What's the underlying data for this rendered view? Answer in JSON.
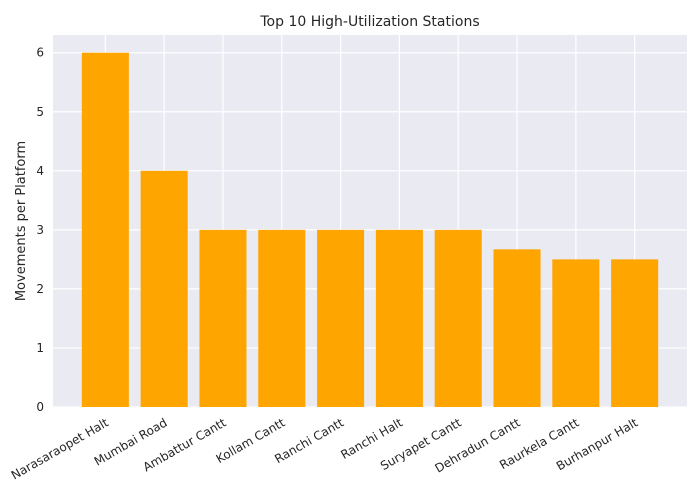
{
  "chart_data": {
    "type": "bar",
    "title": "Top 10 High-Utilization Stations",
    "xlabel": "",
    "ylabel": "Movements per Platform",
    "categories": [
      "Narasaraopet Halt",
      "Mumbai Road",
      "Ambattur Cantt",
      "Kollam Cantt",
      "Ranchi Cantt",
      "Ranchi Halt",
      "Suryapet Cantt",
      "Dehradun Cantt",
      "Raurkela Cantt",
      "Burhanpur Halt"
    ],
    "values": [
      6.0,
      4.0,
      3.0,
      3.0,
      3.0,
      3.0,
      3.0,
      2.67,
      2.5,
      2.5
    ],
    "ylim": [
      0,
      6.3
    ],
    "yticks": [
      "0",
      "1",
      "2",
      "3",
      "4",
      "5",
      "6"
    ],
    "grid": true,
    "bar_color": "#FFA500",
    "background_color": "#EAEAF2",
    "grid_color": "#FFFFFF"
  }
}
